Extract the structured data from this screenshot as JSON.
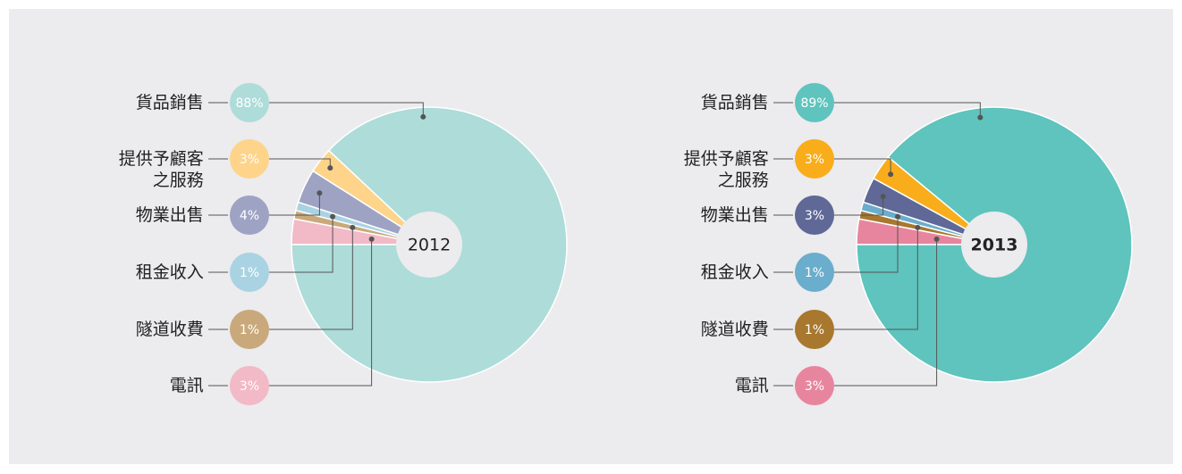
{
  "chart_data": [
    {
      "type": "pie",
      "title": "2012",
      "categories": [
        "貨品銷售",
        "提供予顧客之服務",
        "物業出售",
        "租金收入",
        "隧道收費",
        "電訊"
      ],
      "values": [
        88,
        3,
        4,
        1,
        1,
        3
      ],
      "value_labels": [
        "88%",
        "3%",
        "4%",
        "1%",
        "1%",
        "3%"
      ],
      "colors": [
        "#addcd9",
        "#fdd48a",
        "#9ea3c4",
        "#a9d3e2",
        "#c9a97c",
        "#f2b9c6"
      ],
      "title_bold": false
    },
    {
      "type": "pie",
      "title": "2013",
      "categories": [
        "貨品銷售",
        "提供予顧客之服務",
        "物業出售",
        "租金收入",
        "隧道收費",
        "電訊"
      ],
      "values": [
        89,
        3,
        3,
        1,
        1,
        3
      ],
      "value_labels": [
        "89%",
        "3%",
        "3%",
        "1%",
        "1%",
        "3%"
      ],
      "colors": [
        "#5ec4bd",
        "#f9ad1b",
        "#5f6896",
        "#6aadcc",
        "#a8782f",
        "#e8859e"
      ],
      "title_bold": true
    }
  ]
}
